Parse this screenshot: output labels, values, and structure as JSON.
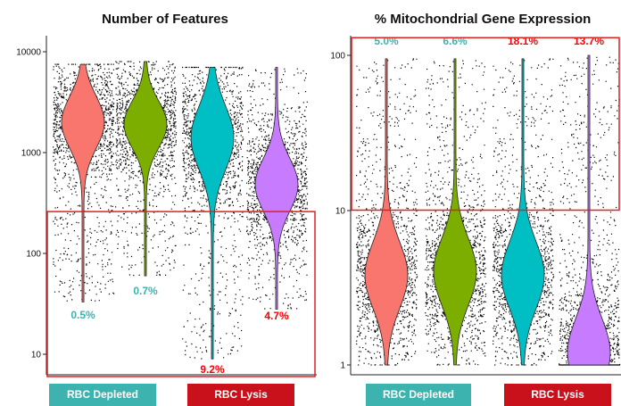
{
  "chart_data": [
    {
      "type": "violin",
      "title": "Number of Features",
      "y_scale": "log",
      "ylim": [
        6,
        10000
      ],
      "yticks": [
        "10000",
        "1000",
        "100",
        "10"
      ],
      "series": [
        {
          "color": "#f8766d",
          "mode": 2000,
          "low": 33,
          "high": 7500,
          "below_threshold_pct": "0.5%"
        },
        {
          "color": "#7cae00",
          "mode": 1900,
          "low": 60,
          "high": 8000,
          "below_threshold_pct": "0.7%"
        },
        {
          "color": "#00bfc4",
          "mode": 1400,
          "low": 9,
          "high": 7000,
          "below_threshold_pct": "9.2%"
        },
        {
          "color": "#c77cff",
          "mode": 480,
          "low": 28,
          "high": 7000,
          "below_threshold_pct": "4.7%"
        }
      ],
      "threshold_box": {
        "y_low": 6,
        "y_high": 260
      },
      "groups": [
        {
          "label": "RBC Depleted",
          "color": "#3cb3ae"
        },
        {
          "label": "RBC Lysis",
          "color": "#c8111a"
        }
      ]
    },
    {
      "type": "violin",
      "title": "% Mitochondrial Gene Expression",
      "y_scale": "log",
      "ylim": [
        0.9,
        130
      ],
      "yticks": [
        "100",
        "10",
        "1"
      ],
      "series": [
        {
          "color": "#f8766d",
          "mode": 3.8,
          "low": 1,
          "high": 95,
          "above_threshold_pct": "5.0%"
        },
        {
          "color": "#7cae00",
          "mode": 4.0,
          "low": 1,
          "high": 95,
          "above_threshold_pct": "6.6%"
        },
        {
          "color": "#00bfc4",
          "mode": 3.8,
          "low": 1,
          "high": 95,
          "above_threshold_pct": "18.1%"
        },
        {
          "color": "#c77cff",
          "mode": 1.2,
          "low": 1,
          "high": 100,
          "above_threshold_pct": "13.7%"
        }
      ],
      "threshold_box": {
        "y_low": 10,
        "y_high": 130
      },
      "groups": [
        {
          "label": "RBC Depleted",
          "color": "#3cb3ae"
        },
        {
          "label": "RBC Lysis",
          "color": "#c8111a"
        }
      ]
    }
  ],
  "label_colors": {
    "depleted": "#3cb3ae",
    "lysis": "#ff0000"
  },
  "box_color": "#e02020"
}
